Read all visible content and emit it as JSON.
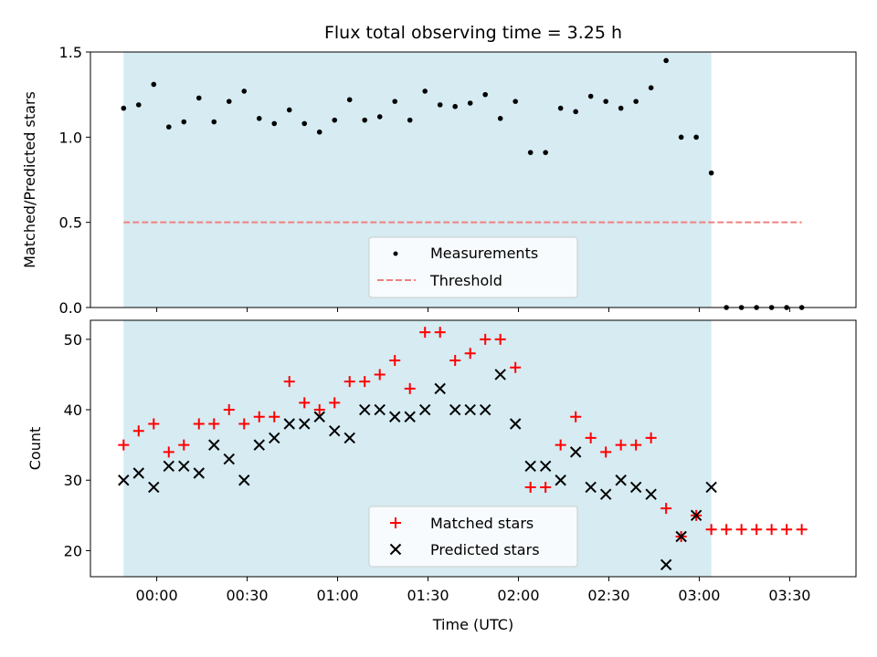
{
  "chart_data": [
    {
      "type": "scatter",
      "title": "Flux total observing time = 3.25 h",
      "ylabel": "Matched/Predicted stars",
      "xlabel": "",
      "ylim": [
        0,
        1.5
      ],
      "y_ticks": [
        "0.0",
        "0.5",
        "1.0",
        "1.5"
      ],
      "grid": false,
      "legend_position": "lower-center",
      "shaded_interval": [
        "23:49",
        "03:04"
      ],
      "shade_color": "#add8e6",
      "threshold": {
        "name": "Threshold",
        "value": 0.5,
        "x_range": [
          "23:49",
          "03:34"
        ],
        "color": "#f08080",
        "style": "dashed"
      },
      "series": [
        {
          "name": "Measurements",
          "color": "#000000",
          "marker": "dot",
          "points": [
            [
              "23:49",
              1.17
            ],
            [
              "23:54",
              1.19
            ],
            [
              "23:59",
              1.31
            ],
            [
              "00:04",
              1.06
            ],
            [
              "00:09",
              1.09
            ],
            [
              "00:14",
              1.23
            ],
            [
              "00:19",
              1.09
            ],
            [
              "00:24",
              1.21
            ],
            [
              "00:29",
              1.27
            ],
            [
              "00:34",
              1.11
            ],
            [
              "00:39",
              1.08
            ],
            [
              "00:44",
              1.16
            ],
            [
              "00:49",
              1.08
            ],
            [
              "00:54",
              1.03
            ],
            [
              "00:59",
              1.1
            ],
            [
              "01:04",
              1.22
            ],
            [
              "01:09",
              1.1
            ],
            [
              "01:14",
              1.12
            ],
            [
              "01:19",
              1.21
            ],
            [
              "01:24",
              1.1
            ],
            [
              "01:29",
              1.27
            ],
            [
              "01:34",
              1.19
            ],
            [
              "01:39",
              1.18
            ],
            [
              "01:44",
              1.2
            ],
            [
              "01:49",
              1.25
            ],
            [
              "01:54",
              1.11
            ],
            [
              "01:59",
              1.21
            ],
            [
              "02:04",
              0.91
            ],
            [
              "02:09",
              0.91
            ],
            [
              "02:14",
              1.17
            ],
            [
              "02:19",
              1.15
            ],
            [
              "02:24",
              1.24
            ],
            [
              "02:29",
              1.21
            ],
            [
              "02:34",
              1.17
            ],
            [
              "02:39",
              1.21
            ],
            [
              "02:44",
              1.29
            ],
            [
              "02:49",
              1.45
            ],
            [
              "02:54",
              1.0
            ],
            [
              "02:59",
              1.0
            ],
            [
              "03:04",
              0.79
            ],
            [
              "03:09",
              0.0
            ],
            [
              "03:14",
              0.0
            ],
            [
              "03:19",
              0.0
            ],
            [
              "03:24",
              0.0
            ],
            [
              "03:29",
              0.0
            ],
            [
              "03:34",
              0.0
            ]
          ]
        }
      ],
      "legend": [
        "Measurements",
        "Threshold"
      ]
    },
    {
      "type": "scatter",
      "title": "",
      "ylabel": "Count",
      "xlabel": "Time (UTC)",
      "ylim": [
        16.3,
        52.7
      ],
      "y_ticks": [
        "20",
        "30",
        "40",
        "50"
      ],
      "x_ticks": [
        "00:00",
        "00:30",
        "01:00",
        "01:30",
        "02:00",
        "02:30",
        "03:00",
        "03:30"
      ],
      "xlim": [
        "23:38",
        "03:52"
      ],
      "grid": false,
      "legend_position": "lower-center",
      "shaded_interval": [
        "23:49",
        "03:04"
      ],
      "shade_color": "#add8e6",
      "series": [
        {
          "name": "Matched stars",
          "color": "#ff0000",
          "marker": "plus",
          "points": [
            [
              "23:49",
              35
            ],
            [
              "23:54",
              37
            ],
            [
              "23:59",
              38
            ],
            [
              "00:04",
              34
            ],
            [
              "00:09",
              35
            ],
            [
              "00:14",
              38
            ],
            [
              "00:19",
              38
            ],
            [
              "00:24",
              40
            ],
            [
              "00:29",
              38
            ],
            [
              "00:34",
              39
            ],
            [
              "00:39",
              39
            ],
            [
              "00:44",
              44
            ],
            [
              "00:49",
              41
            ],
            [
              "00:54",
              40
            ],
            [
              "00:59",
              41
            ],
            [
              "01:04",
              44
            ],
            [
              "01:09",
              44
            ],
            [
              "01:14",
              45
            ],
            [
              "01:19",
              47
            ],
            [
              "01:24",
              43
            ],
            [
              "01:29",
              51
            ],
            [
              "01:34",
              51
            ],
            [
              "01:39",
              47
            ],
            [
              "01:44",
              48
            ],
            [
              "01:49",
              50
            ],
            [
              "01:54",
              50
            ],
            [
              "01:59",
              46
            ],
            [
              "02:04",
              29
            ],
            [
              "02:09",
              29
            ],
            [
              "02:14",
              35
            ],
            [
              "02:19",
              39
            ],
            [
              "02:24",
              36
            ],
            [
              "02:29",
              34
            ],
            [
              "02:34",
              35
            ],
            [
              "02:39",
              35
            ],
            [
              "02:44",
              36
            ],
            [
              "02:49",
              26
            ],
            [
              "02:54",
              22
            ],
            [
              "02:59",
              25
            ],
            [
              "03:04",
              23
            ],
            [
              "03:09",
              23
            ],
            [
              "03:14",
              23
            ],
            [
              "03:19",
              23
            ],
            [
              "03:24",
              23
            ],
            [
              "03:29",
              23
            ],
            [
              "03:34",
              23
            ]
          ]
        },
        {
          "name": "Predicted stars",
          "color": "#000000",
          "marker": "x",
          "points": [
            [
              "23:49",
              30
            ],
            [
              "23:54",
              31
            ],
            [
              "23:59",
              29
            ],
            [
              "00:04",
              32
            ],
            [
              "00:09",
              32
            ],
            [
              "00:14",
              31
            ],
            [
              "00:19",
              35
            ],
            [
              "00:24",
              33
            ],
            [
              "00:29",
              30
            ],
            [
              "00:34",
              35
            ],
            [
              "00:39",
              36
            ],
            [
              "00:44",
              38
            ],
            [
              "00:49",
              38
            ],
            [
              "00:54",
              39
            ],
            [
              "00:59",
              37
            ],
            [
              "01:04",
              36
            ],
            [
              "01:09",
              40
            ],
            [
              "01:14",
              40
            ],
            [
              "01:19",
              39
            ],
            [
              "01:24",
              39
            ],
            [
              "01:29",
              40
            ],
            [
              "01:34",
              43
            ],
            [
              "01:39",
              40
            ],
            [
              "01:44",
              40
            ],
            [
              "01:49",
              40
            ],
            [
              "01:54",
              45
            ],
            [
              "01:59",
              38
            ],
            [
              "02:04",
              32
            ],
            [
              "02:09",
              32
            ],
            [
              "02:14",
              30
            ],
            [
              "02:19",
              34
            ],
            [
              "02:24",
              29
            ],
            [
              "02:29",
              28
            ],
            [
              "02:34",
              30
            ],
            [
              "02:39",
              29
            ],
            [
              "02:44",
              28
            ],
            [
              "02:49",
              18
            ],
            [
              "02:54",
              22
            ],
            [
              "02:59",
              25
            ],
            [
              "03:04",
              29
            ]
          ]
        }
      ],
      "legend": [
        "Matched stars",
        "Predicted stars"
      ]
    }
  ]
}
